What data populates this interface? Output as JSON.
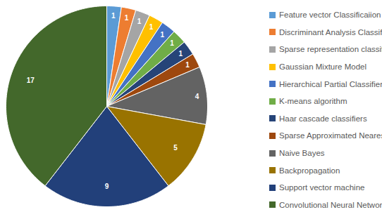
{
  "chart_data": {
    "type": "pie",
    "categories": [
      "Feature vector Classificaiion",
      "Discriminant Analysis Classification",
      "Sparse representation classification",
      "Gaussian Mixture Model",
      "Hierarchical Partial Classifier",
      "K-means algorithm",
      "Haar cascade classifiers",
      "Sparse Approximated Nearest Point",
      "Naive Bayes",
      "Backpropagation",
      "Support vector machine",
      "Convolutional Neural Networks"
    ],
    "values": [
      1,
      1,
      1,
      1,
      1,
      1,
      1,
      1,
      4,
      5,
      9,
      17
    ],
    "colors": [
      "#5b9bd5",
      "#ed7d31",
      "#a5a5a5",
      "#ffc000",
      "#4472c4",
      "#70ad47",
      "#264478",
      "#9e480e",
      "#636363",
      "#997300",
      "#22407a",
      "#43682b"
    ],
    "data_labels": true,
    "legend": "right"
  }
}
